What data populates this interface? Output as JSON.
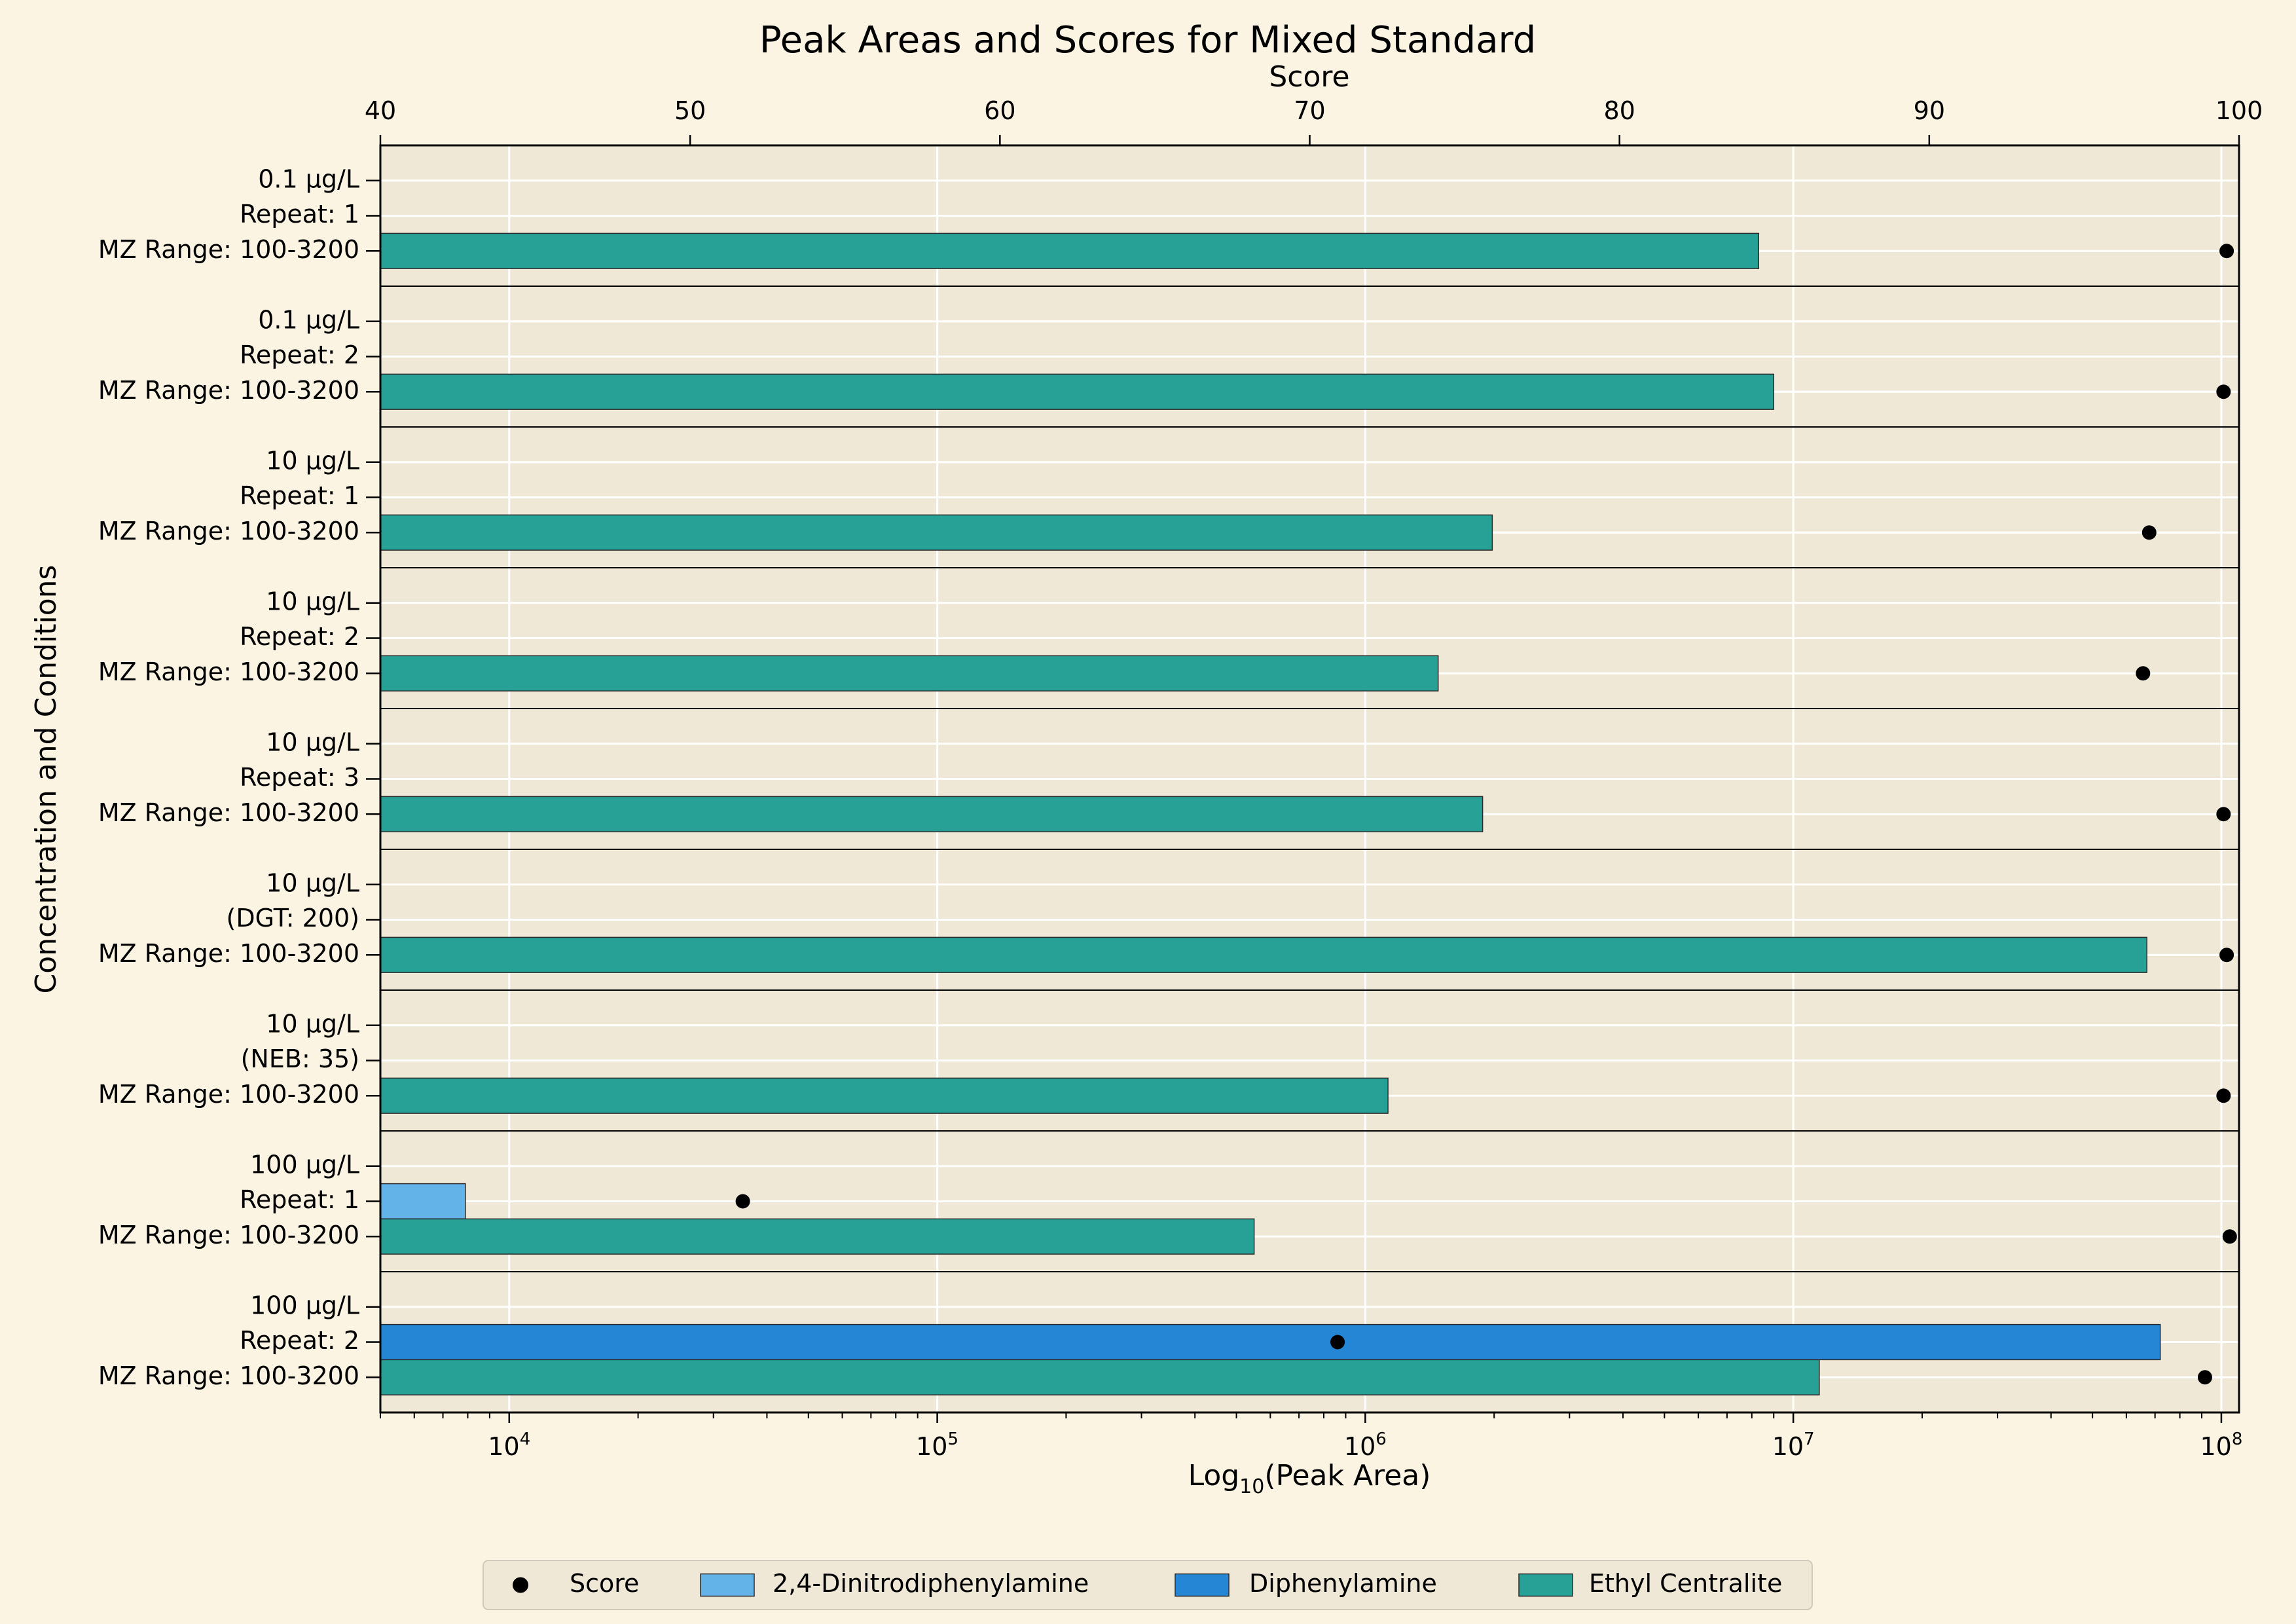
{
  "chart_data": {
    "type": "bar",
    "orientation": "horizontal",
    "title": "Peak Areas and Scores for Mixed Standard",
    "xlabel_bottom": "Log10(Peak Area)",
    "xlabel_bottom_parts": {
      "prefix": "Log",
      "sub": "10",
      "suffix": "(Peak Area)"
    },
    "xlabel_top": "Score",
    "ylabel": "Concentration and Conditions",
    "x_bottom_scale": "log",
    "x_bottom_range": [
      5000,
      110000000
    ],
    "x_bottom_ticks": [
      {
        "value": 10000,
        "base": "10",
        "exp": "4"
      },
      {
        "value": 100000,
        "base": "10",
        "exp": "5"
      },
      {
        "value": 1000000,
        "base": "10",
        "exp": "6"
      },
      {
        "value": 10000000,
        "base": "10",
        "exp": "7"
      },
      {
        "value": 100000000,
        "base": "10",
        "exp": "8"
      }
    ],
    "x_top_range": [
      40,
      100
    ],
    "x_top_ticks": [
      "40",
      "50",
      "60",
      "70",
      "80",
      "90",
      "100"
    ],
    "grid": true,
    "legend_placement": "bottom-center",
    "colors": {
      "background": "#fcf4e2",
      "plot_background": "#efe8d6",
      "grid": "#ffffff",
      "score": "#000000",
      "2,4-Dinitrodiphenylamine": "#63b3e8",
      "Diphenylamine": "#2586d6",
      "Ethyl Centralite": "#27a096"
    },
    "legend": [
      "Score",
      "2,4-Dinitrodiphenylamine",
      "Diphenylamine",
      "Ethyl Centralite"
    ],
    "groups": [
      {
        "label": [
          "0.1 µg/L",
          "Repeat: 1",
          "MZ Range: 100-3200"
        ],
        "bars": [
          {
            "compound": "Ethyl Centralite",
            "peak_area": 8300000,
            "score": 99.6
          }
        ]
      },
      {
        "label": [
          "0.1 µg/L",
          "Repeat: 2",
          "MZ Range: 100-3200"
        ],
        "bars": [
          {
            "compound": "Ethyl Centralite",
            "peak_area": 9000000,
            "score": 99.5
          }
        ]
      },
      {
        "label": [
          "10 µg/L",
          "Repeat: 1",
          "MZ Range: 100-3200"
        ],
        "bars": [
          {
            "compound": "Ethyl Centralite",
            "peak_area": 1980000,
            "score": 97.1
          }
        ]
      },
      {
        "label": [
          "10 µg/L",
          "Repeat: 2",
          "MZ Range: 100-3200"
        ],
        "bars": [
          {
            "compound": "Ethyl Centralite",
            "peak_area": 1480000,
            "score": 96.9
          }
        ]
      },
      {
        "label": [
          "10 µg/L",
          "Repeat: 3",
          "MZ Range: 100-3200"
        ],
        "bars": [
          {
            "compound": "Ethyl Centralite",
            "peak_area": 1880000,
            "score": 99.5
          }
        ]
      },
      {
        "label": [
          "10 µg/L",
          "(DGT: 200)",
          "MZ Range: 100-3200"
        ],
        "bars": [
          {
            "compound": "Ethyl Centralite",
            "peak_area": 67000000,
            "score": 99.6
          }
        ]
      },
      {
        "label": [
          "10 µg/L",
          "(NEB: 35)",
          "MZ Range: 100-3200"
        ],
        "bars": [
          {
            "compound": "Ethyl Centralite",
            "peak_area": 1130000,
            "score": 99.5
          }
        ]
      },
      {
        "label": [
          "100 µg/L",
          "Repeat: 1",
          "MZ Range: 100-3200"
        ],
        "bars": [
          {
            "compound": "2,4-Dinitrodiphenylamine",
            "peak_area": 7900,
            "score": 51.7
          },
          {
            "compound": "Ethyl Centralite",
            "peak_area": 550000,
            "score": 99.7
          }
        ]
      },
      {
        "label": [
          "100 µg/L",
          "Repeat: 2",
          "MZ Range: 100-3200"
        ],
        "bars": [
          {
            "compound": "Diphenylamine",
            "peak_area": 72000000,
            "score": 70.9
          },
          {
            "compound": "Ethyl Centralite",
            "peak_area": 11500000,
            "score": 98.9
          }
        ]
      }
    ]
  }
}
